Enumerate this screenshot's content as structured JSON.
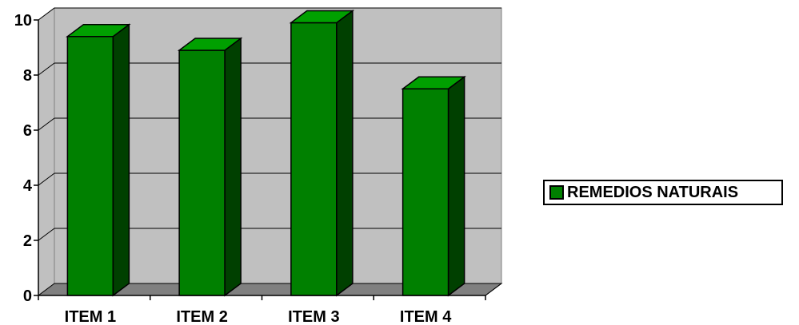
{
  "chart_data": {
    "type": "bar",
    "categories": [
      "ITEM 1",
      "ITEM 2",
      "ITEM 3",
      "ITEM 4"
    ],
    "series": [
      {
        "name": "REMEDIOS NATURAIS",
        "values": [
          9.4,
          8.9,
          9.9,
          7.5
        ]
      }
    ],
    "yticks": [
      "0",
      "2",
      "4",
      "6",
      "8",
      "10"
    ],
    "ylim": [
      0,
      10
    ],
    "grid": true,
    "legend_position": "right",
    "colors": {
      "bar_front": "#008000",
      "bar_side": "#004000",
      "bar_top": "#00A000",
      "wall": "#C0C0C0",
      "floor": "#808080",
      "gridline": "#000000"
    }
  }
}
